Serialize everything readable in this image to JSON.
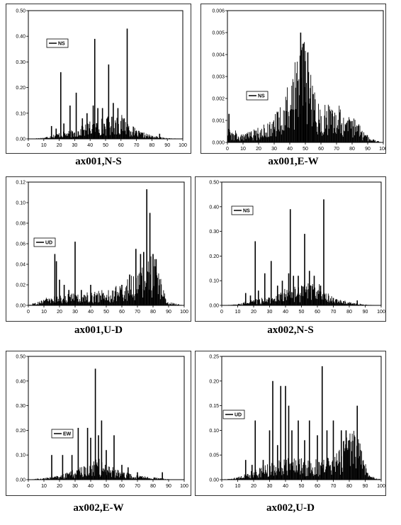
{
  "chart_data": [
    {
      "type": "bar",
      "title": "ax001,N-S",
      "legend": "NS",
      "xlim": [
        0,
        100
      ],
      "ylim": [
        0,
        0.5
      ],
      "xticks": [
        "0",
        "10",
        "20",
        "30",
        "40",
        "50",
        "60",
        "70",
        "80",
        "90",
        "100"
      ],
      "yticks": [
        "0.00",
        "0.10",
        "0.20",
        "0.30",
        "0.40",
        "0.50"
      ],
      "peaks": [
        [
          15,
          0.05
        ],
        [
          18,
          0.04
        ],
        [
          21,
          0.26
        ],
        [
          23,
          0.06
        ],
        [
          27,
          0.13
        ],
        [
          31,
          0.18
        ],
        [
          35,
          0.08
        ],
        [
          38,
          0.1
        ],
        [
          42,
          0.13
        ],
        [
          43,
          0.39
        ],
        [
          45,
          0.12
        ],
        [
          48,
          0.12
        ],
        [
          52,
          0.29
        ],
        [
          55,
          0.14
        ],
        [
          58,
          0.12
        ],
        [
          62,
          0.08
        ],
        [
          64,
          0.43
        ],
        [
          70,
          0.03
        ],
        [
          85,
          0.02
        ]
      ],
      "envelope": [
        [
          0,
          0
        ],
        [
          10,
          0.003
        ],
        [
          20,
          0.015
        ],
        [
          30,
          0.02
        ],
        [
          40,
          0.04
        ],
        [
          50,
          0.05
        ],
        [
          60,
          0.055
        ],
        [
          65,
          0.04
        ],
        [
          70,
          0.02
        ],
        [
          80,
          0.008
        ],
        [
          90,
          0.002
        ],
        [
          100,
          0
        ]
      ]
    },
    {
      "type": "bar",
      "title": "ax001,E-W",
      "legend": "NS",
      "xlim": [
        0,
        100
      ],
      "ylim": [
        0,
        0.006
      ],
      "xticks": [
        "0",
        "10",
        "20",
        "30",
        "40",
        "50",
        "60",
        "70",
        "80",
        "90",
        "100"
      ],
      "yticks": [
        "0.000",
        "0.001",
        "0.002",
        "0.003",
        "0.004",
        "0.005",
        "0.006"
      ],
      "peaks": [
        [
          1,
          0.0013
        ],
        [
          45,
          0.0028
        ],
        [
          47,
          0.005
        ],
        [
          49,
          0.0045
        ],
        [
          50,
          0.0037
        ],
        [
          52,
          0.0032
        ],
        [
          55,
          0.0022
        ]
      ],
      "envelope": [
        [
          0,
          0.0008
        ],
        [
          3,
          0.0004
        ],
        [
          8,
          0.0002
        ],
        [
          15,
          0.0003
        ],
        [
          25,
          0.0005
        ],
        [
          33,
          0.0009
        ],
        [
          40,
          0.0016
        ],
        [
          45,
          0.0025
        ],
        [
          48,
          0.003
        ],
        [
          52,
          0.0024
        ],
        [
          56,
          0.0013
        ],
        [
          60,
          0.0009
        ],
        [
          68,
          0.0012
        ],
        [
          75,
          0.0009
        ],
        [
          82,
          0.0006
        ],
        [
          88,
          0.0003
        ],
        [
          92,
          0.0001
        ],
        [
          100,
          0
        ]
      ]
    },
    {
      "type": "bar",
      "title": "ax001,U-D",
      "legend": "UD",
      "xlim": [
        0,
        100
      ],
      "ylim": [
        0,
        0.12
      ],
      "xticks": [
        "0",
        "10",
        "20",
        "30",
        "40",
        "50",
        "60",
        "70",
        "80",
        "90",
        "100"
      ],
      "yticks": [
        "0.00",
        "0.02",
        "0.04",
        "0.06",
        "0.08",
        "0.10",
        "0.12"
      ],
      "peaks": [
        [
          17,
          0.05
        ],
        [
          18,
          0.043
        ],
        [
          20,
          0.025
        ],
        [
          23,
          0.02
        ],
        [
          26,
          0.015
        ],
        [
          30,
          0.062
        ],
        [
          34,
          0.015
        ],
        [
          40,
          0.02
        ],
        [
          48,
          0.012
        ],
        [
          60,
          0.02
        ],
        [
          65,
          0.03
        ],
        [
          69,
          0.055
        ],
        [
          72,
          0.05
        ],
        [
          74,
          0.052
        ],
        [
          76,
          0.113
        ],
        [
          78,
          0.09
        ],
        [
          80,
          0.05
        ],
        [
          82,
          0.045
        ]
      ],
      "envelope": [
        [
          0,
          0
        ],
        [
          10,
          0.004
        ],
        [
          20,
          0.006
        ],
        [
          30,
          0.007
        ],
        [
          40,
          0.008
        ],
        [
          50,
          0.009
        ],
        [
          60,
          0.012
        ],
        [
          65,
          0.016
        ],
        [
          70,
          0.02
        ],
        [
          75,
          0.025
        ],
        [
          80,
          0.03
        ],
        [
          83,
          0.025
        ],
        [
          86,
          0.01
        ],
        [
          90,
          0.002
        ],
        [
          100,
          0
        ]
      ]
    },
    {
      "type": "bar",
      "title": "ax002,N-S",
      "legend": "NS",
      "xlim": [
        0,
        100
      ],
      "ylim": [
        0,
        0.5
      ],
      "xticks": [
        "0",
        "10",
        "20",
        "30",
        "40",
        "50",
        "60",
        "70",
        "80",
        "90",
        "100"
      ],
      "yticks": [
        "0.00",
        "0.10",
        "0.20",
        "0.30",
        "0.40",
        "0.50"
      ],
      "peaks": [
        [
          15,
          0.05
        ],
        [
          18,
          0.04
        ],
        [
          21,
          0.26
        ],
        [
          23,
          0.06
        ],
        [
          27,
          0.13
        ],
        [
          31,
          0.18
        ],
        [
          35,
          0.08
        ],
        [
          38,
          0.1
        ],
        [
          42,
          0.13
        ],
        [
          43,
          0.39
        ],
        [
          45,
          0.12
        ],
        [
          48,
          0.12
        ],
        [
          52,
          0.29
        ],
        [
          55,
          0.14
        ],
        [
          58,
          0.12
        ],
        [
          62,
          0.08
        ],
        [
          64,
          0.43
        ],
        [
          70,
          0.03
        ],
        [
          85,
          0.02
        ]
      ],
      "envelope": [
        [
          0,
          0
        ],
        [
          10,
          0.003
        ],
        [
          20,
          0.015
        ],
        [
          30,
          0.02
        ],
        [
          40,
          0.04
        ],
        [
          50,
          0.05
        ],
        [
          60,
          0.055
        ],
        [
          65,
          0.04
        ],
        [
          70,
          0.02
        ],
        [
          80,
          0.008
        ],
        [
          90,
          0.002
        ],
        [
          100,
          0
        ]
      ]
    },
    {
      "type": "bar",
      "title": "ax002,E-W",
      "legend": "EW",
      "xlim": [
        0,
        100
      ],
      "ylim": [
        0,
        0.5
      ],
      "xticks": [
        "0",
        "10",
        "20",
        "30",
        "40",
        "50",
        "60",
        "70",
        "80",
        "90",
        "100"
      ],
      "yticks": [
        "0.00",
        "0.10",
        "0.20",
        "0.30",
        "0.40",
        "0.50"
      ],
      "peaks": [
        [
          15,
          0.1
        ],
        [
          22,
          0.1
        ],
        [
          28,
          0.1
        ],
        [
          32,
          0.21
        ],
        [
          38,
          0.21
        ],
        [
          40,
          0.17
        ],
        [
          43,
          0.45
        ],
        [
          45,
          0.18
        ],
        [
          47,
          0.24
        ],
        [
          50,
          0.12
        ],
        [
          55,
          0.18
        ],
        [
          60,
          0.06
        ],
        [
          64,
          0.05
        ],
        [
          70,
          0.03
        ],
        [
          86,
          0.03
        ]
      ],
      "envelope": [
        [
          0,
          0
        ],
        [
          10,
          0.004
        ],
        [
          20,
          0.01
        ],
        [
          30,
          0.025
        ],
        [
          40,
          0.04
        ],
        [
          45,
          0.05
        ],
        [
          50,
          0.04
        ],
        [
          60,
          0.02
        ],
        [
          70,
          0.01
        ],
        [
          80,
          0.006
        ],
        [
          90,
          0.001
        ],
        [
          100,
          0
        ]
      ]
    },
    {
      "type": "bar",
      "title": "ax002,U-D",
      "legend": "UD",
      "xlim": [
        0,
        100
      ],
      "ylim": [
        0,
        0.25
      ],
      "xticks": [
        "0",
        "10",
        "20",
        "30",
        "40",
        "50",
        "60",
        "70",
        "80",
        "90",
        "100"
      ],
      "yticks": [
        "0.00",
        "0.05",
        "0.10",
        "0.15",
        "0.20",
        "0.25"
      ],
      "peaks": [
        [
          15,
          0.04
        ],
        [
          19,
          0.03
        ],
        [
          21,
          0.12
        ],
        [
          26,
          0.04
        ],
        [
          30,
          0.1
        ],
        [
          32,
          0.2
        ],
        [
          35,
          0.07
        ],
        [
          37,
          0.19
        ],
        [
          40,
          0.19
        ],
        [
          42,
          0.15
        ],
        [
          44,
          0.1
        ],
        [
          48,
          0.12
        ],
        [
          52,
          0.08
        ],
        [
          55,
          0.12
        ],
        [
          60,
          0.09
        ],
        [
          63,
          0.23
        ],
        [
          66,
          0.1
        ],
        [
          70,
          0.12
        ],
        [
          75,
          0.1
        ],
        [
          78,
          0.1
        ],
        [
          80,
          0.08
        ],
        [
          83,
          0.09
        ],
        [
          85,
          0.15
        ],
        [
          87,
          0.06
        ]
      ],
      "envelope": [
        [
          0,
          0
        ],
        [
          10,
          0.003
        ],
        [
          20,
          0.012
        ],
        [
          30,
          0.02
        ],
        [
          40,
          0.026
        ],
        [
          50,
          0.026
        ],
        [
          60,
          0.025
        ],
        [
          70,
          0.028
        ],
        [
          75,
          0.04
        ],
        [
          80,
          0.06
        ],
        [
          84,
          0.062
        ],
        [
          88,
          0.035
        ],
        [
          92,
          0.006
        ],
        [
          100,
          0
        ]
      ]
    }
  ],
  "colors": {
    "ink": "#000000",
    "background": "#ffffff"
  }
}
